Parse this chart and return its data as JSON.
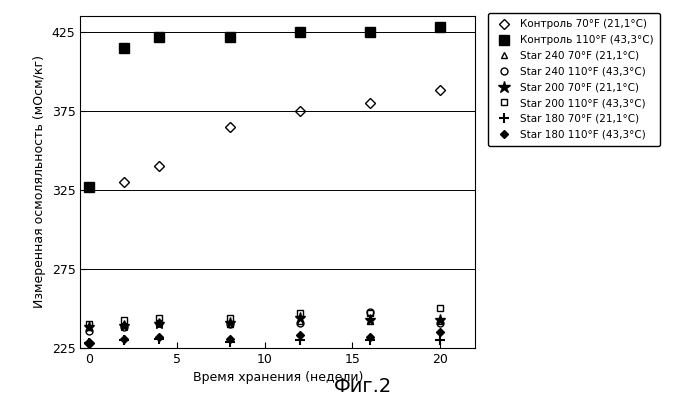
{
  "xlabel": "Время хранения (недели)",
  "ylabel": "Измеренная осмоляльность (мОсм/кг)",
  "title": "Фиг.2",
  "ylim": [
    225,
    435
  ],
  "xlim": [
    -0.5,
    22
  ],
  "yticks": [
    225,
    275,
    325,
    375,
    425
  ],
  "xticks": [
    0,
    5,
    10,
    15,
    20
  ],
  "series": [
    {
      "label": "Контроль 70°F (21,1°C)",
      "x": [
        0,
        2,
        4,
        8,
        12,
        16,
        20
      ],
      "y": [
        228,
        330,
        340,
        365,
        375,
        380,
        388
      ],
      "marker": "D",
      "markersize": 5,
      "fillstyle": "none",
      "color": "black",
      "linestyle": "none",
      "markeredgewidth": 1.0
    },
    {
      "label": "Контроль 110°F (43,3°C)",
      "x": [
        0,
        2,
        4,
        8,
        12,
        16,
        20
      ],
      "y": [
        327,
        415,
        422,
        422,
        425,
        425,
        428
      ],
      "marker": "s",
      "markersize": 7,
      "fillstyle": "full",
      "color": "black",
      "linestyle": "none",
      "markeredgewidth": 1.0
    },
    {
      "label": "Star 240 70°F (21,1°C)",
      "x": [
        0,
        2,
        4,
        8,
        12,
        16,
        20
      ],
      "y": [
        238,
        240,
        241,
        240,
        242,
        242,
        242
      ],
      "marker": "^",
      "markersize": 5,
      "fillstyle": "none",
      "color": "black",
      "linestyle": "none",
      "markeredgewidth": 1.0
    },
    {
      "label": "Star 240 110°F (43,3°C)",
      "x": [
        0,
        2,
        4,
        8,
        12,
        16,
        20
      ],
      "y": [
        236,
        238,
        241,
        240,
        241,
        248,
        241
      ],
      "marker": "o",
      "markersize": 5,
      "fillstyle": "none",
      "color": "black",
      "linestyle": "none",
      "markeredgewidth": 1.0
    },
    {
      "label": "Star 200 70°F (21,1°C)",
      "x": [
        0,
        2,
        4,
        8,
        12,
        16,
        20
      ],
      "y": [
        238,
        239,
        240,
        241,
        244,
        243,
        243
      ],
      "marker": "*",
      "markersize": 8,
      "fillstyle": "full",
      "color": "black",
      "linestyle": "none",
      "markeredgewidth": 1.0
    },
    {
      "label": "Star 200 110°F (43,3°C)",
      "x": [
        0,
        2,
        4,
        8,
        12,
        16,
        20
      ],
      "y": [
        240,
        243,
        244,
        244,
        247,
        247,
        250
      ],
      "marker": "s",
      "markersize": 5,
      "fillstyle": "none",
      "color": "black",
      "linestyle": "none",
      "markeredgewidth": 1.0
    },
    {
      "label": "Star 180 70°F (21,1°C)",
      "x": [
        0,
        2,
        4,
        8,
        12,
        16,
        20
      ],
      "y": [
        228,
        230,
        231,
        229,
        230,
        230,
        230
      ],
      "marker": "+",
      "markersize": 7,
      "fillstyle": "full",
      "color": "black",
      "linestyle": "none",
      "markeredgewidth": 1.5
    },
    {
      "label": "Star 180 110°F (43,3°C)",
      "x": [
        0,
        2,
        4,
        8,
        12,
        16,
        20
      ],
      "y": [
        228,
        231,
        232,
        231,
        233,
        232,
        235
      ],
      "marker": "D",
      "markersize": 4,
      "fillstyle": "full",
      "color": "black",
      "linestyle": "none",
      "markeredgewidth": 1.0
    }
  ],
  "legend_markers": [
    "D",
    "s",
    "^",
    "o",
    "*",
    "s",
    "+",
    "D"
  ],
  "legend_fillstyles": [
    "none",
    "full",
    "none",
    "none",
    "full",
    "none",
    "full",
    "full"
  ],
  "legend_markersizes": [
    5,
    7,
    5,
    5,
    9,
    5,
    7,
    4
  ],
  "legend_mews": [
    1.0,
    1.0,
    1.0,
    1.0,
    1.0,
    1.0,
    1.5,
    1.0
  ],
  "legend_labels": [
    "Контроль 70°F (21,1°C)",
    "Контроль 110°F (43,3°C)",
    "Star 240 70°F (21,1°C)",
    "Star 240 110°F (43,3°C)",
    "Star 200 70°F (21,1°C)",
    "Star 200 110°F (43,3°C)",
    "Star 180 70°F (21,1°C)",
    "Star 180 110°F (43,3°C)"
  ],
  "grid_y": [
    225,
    275,
    325,
    375,
    425
  ],
  "background_color": "#ffffff"
}
